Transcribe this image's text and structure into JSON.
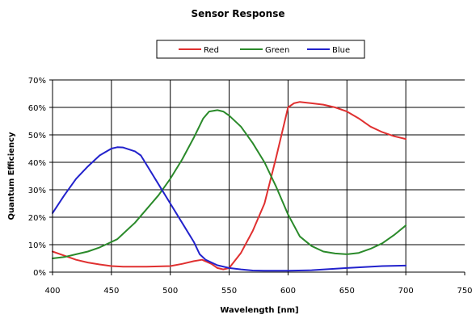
{
  "chart_data": {
    "type": "line",
    "title": "Sensor Response",
    "xlabel": "Wavelength [nm]",
    "ylabel": "Quantum Efficiency",
    "xlim": [
      400,
      750
    ],
    "ylim": [
      0,
      70
    ],
    "x_ticks": [
      "400",
      "450",
      "500",
      "550",
      "600",
      "650",
      "700",
      "750"
    ],
    "y_ticks": [
      "0%",
      "10%",
      "20%",
      "30%",
      "40%",
      "50%",
      "60%",
      "70%"
    ],
    "grid": true,
    "legend_position": "top-center",
    "series": [
      {
        "name": "Red",
        "color": "#e03030",
        "points": [
          [
            400,
            7.5
          ],
          [
            410,
            6
          ],
          [
            420,
            4.5
          ],
          [
            430,
            3.5
          ],
          [
            440,
            2.8
          ],
          [
            450,
            2.2
          ],
          [
            460,
            2
          ],
          [
            480,
            2
          ],
          [
            500,
            2.2
          ],
          [
            510,
            3
          ],
          [
            520,
            4
          ],
          [
            527,
            4.5
          ],
          [
            535,
            3
          ],
          [
            540,
            1.5
          ],
          [
            545,
            1
          ],
          [
            550,
            1.5
          ],
          [
            560,
            7
          ],
          [
            570,
            15
          ],
          [
            580,
            25
          ],
          [
            590,
            42
          ],
          [
            600,
            60
          ],
          [
            605,
            61.5
          ],
          [
            610,
            62
          ],
          [
            620,
            61.5
          ],
          [
            630,
            61
          ],
          [
            640,
            60
          ],
          [
            650,
            58.5
          ],
          [
            660,
            56
          ],
          [
            670,
            53
          ],
          [
            680,
            51
          ],
          [
            690,
            49.5
          ],
          [
            700,
            48.5
          ]
        ]
      },
      {
        "name": "Green",
        "color": "#2a8a2a",
        "points": [
          [
            400,
            5
          ],
          [
            410,
            5.5
          ],
          [
            420,
            6.5
          ],
          [
            430,
            7.5
          ],
          [
            440,
            9
          ],
          [
            450,
            11
          ],
          [
            455,
            12
          ],
          [
            460,
            14
          ],
          [
            470,
            18
          ],
          [
            480,
            23
          ],
          [
            490,
            28
          ],
          [
            500,
            34
          ],
          [
            510,
            41
          ],
          [
            520,
            49
          ],
          [
            528,
            56
          ],
          [
            533,
            58.5
          ],
          [
            540,
            59
          ],
          [
            545,
            58.5
          ],
          [
            550,
            57
          ],
          [
            560,
            53
          ],
          [
            570,
            47
          ],
          [
            580,
            40
          ],
          [
            590,
            31
          ],
          [
            600,
            21
          ],
          [
            610,
            13
          ],
          [
            620,
            9.5
          ],
          [
            630,
            7.5
          ],
          [
            640,
            6.8
          ],
          [
            650,
            6.5
          ],
          [
            660,
            7
          ],
          [
            670,
            8.5
          ],
          [
            680,
            10.5
          ],
          [
            690,
            13.5
          ],
          [
            700,
            17
          ]
        ]
      },
      {
        "name": "Blue",
        "color": "#2222cc",
        "points": [
          [
            400,
            21.5
          ],
          [
            410,
            28
          ],
          [
            420,
            34
          ],
          [
            430,
            38.5
          ],
          [
            440,
            42.5
          ],
          [
            450,
            45
          ],
          [
            455,
            45.5
          ],
          [
            460,
            45.4
          ],
          [
            470,
            44
          ],
          [
            475,
            42.5
          ],
          [
            480,
            39
          ],
          [
            490,
            32
          ],
          [
            500,
            25
          ],
          [
            510,
            18
          ],
          [
            520,
            11
          ],
          [
            525,
            6.5
          ],
          [
            530,
            4.5
          ],
          [
            540,
            2.5
          ],
          [
            550,
            1.5
          ],
          [
            560,
            1
          ],
          [
            570,
            0.6
          ],
          [
            580,
            0.5
          ],
          [
            590,
            0.5
          ],
          [
            600,
            0.5
          ],
          [
            620,
            0.7
          ],
          [
            650,
            1.5
          ],
          [
            680,
            2.2
          ],
          [
            700,
            2.4
          ]
        ]
      }
    ]
  }
}
